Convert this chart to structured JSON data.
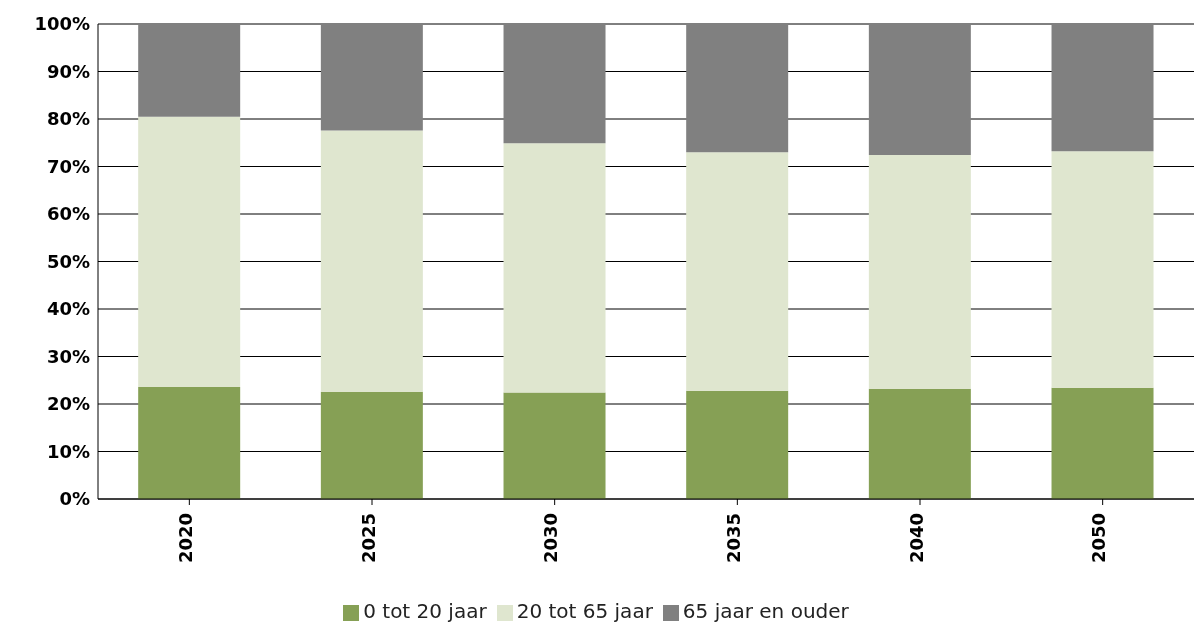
{
  "chart_data": {
    "type": "bar",
    "stacked": true,
    "categories": [
      "2020",
      "2025",
      "2030",
      "2035",
      "2040",
      "2050"
    ],
    "series": [
      {
        "name": "0 tot 20 jaar",
        "color": "#86a055",
        "values": [
          23.6,
          22.6,
          22.4,
          22.8,
          23.2,
          23.4
        ]
      },
      {
        "name": "20 tot 65 jaar",
        "color": "#dfe6cf",
        "values": [
          56.9,
          55.0,
          52.5,
          50.2,
          49.2,
          49.8
        ]
      },
      {
        "name": "65 jaar en ouder",
        "color": "#808080",
        "values": [
          19.5,
          22.4,
          25.1,
          27.0,
          27.6,
          26.8
        ]
      }
    ],
    "ylim": [
      0,
      100
    ],
    "yticks": [
      {
        "value": 0,
        "label": "0%"
      },
      {
        "value": 10,
        "label": "10%"
      },
      {
        "value": 20,
        "label": "20%"
      },
      {
        "value": 30,
        "label": "30%"
      },
      {
        "value": 40,
        "label": "40%"
      },
      {
        "value": 50,
        "label": "50%"
      },
      {
        "value": 60,
        "label": "60%"
      },
      {
        "value": 70,
        "label": "70%"
      },
      {
        "value": 80,
        "label": "80%"
      },
      {
        "value": 90,
        "label": "90%"
      },
      {
        "value": 100,
        "label": "100%"
      }
    ],
    "grid": "y",
    "legend": "bottom"
  }
}
